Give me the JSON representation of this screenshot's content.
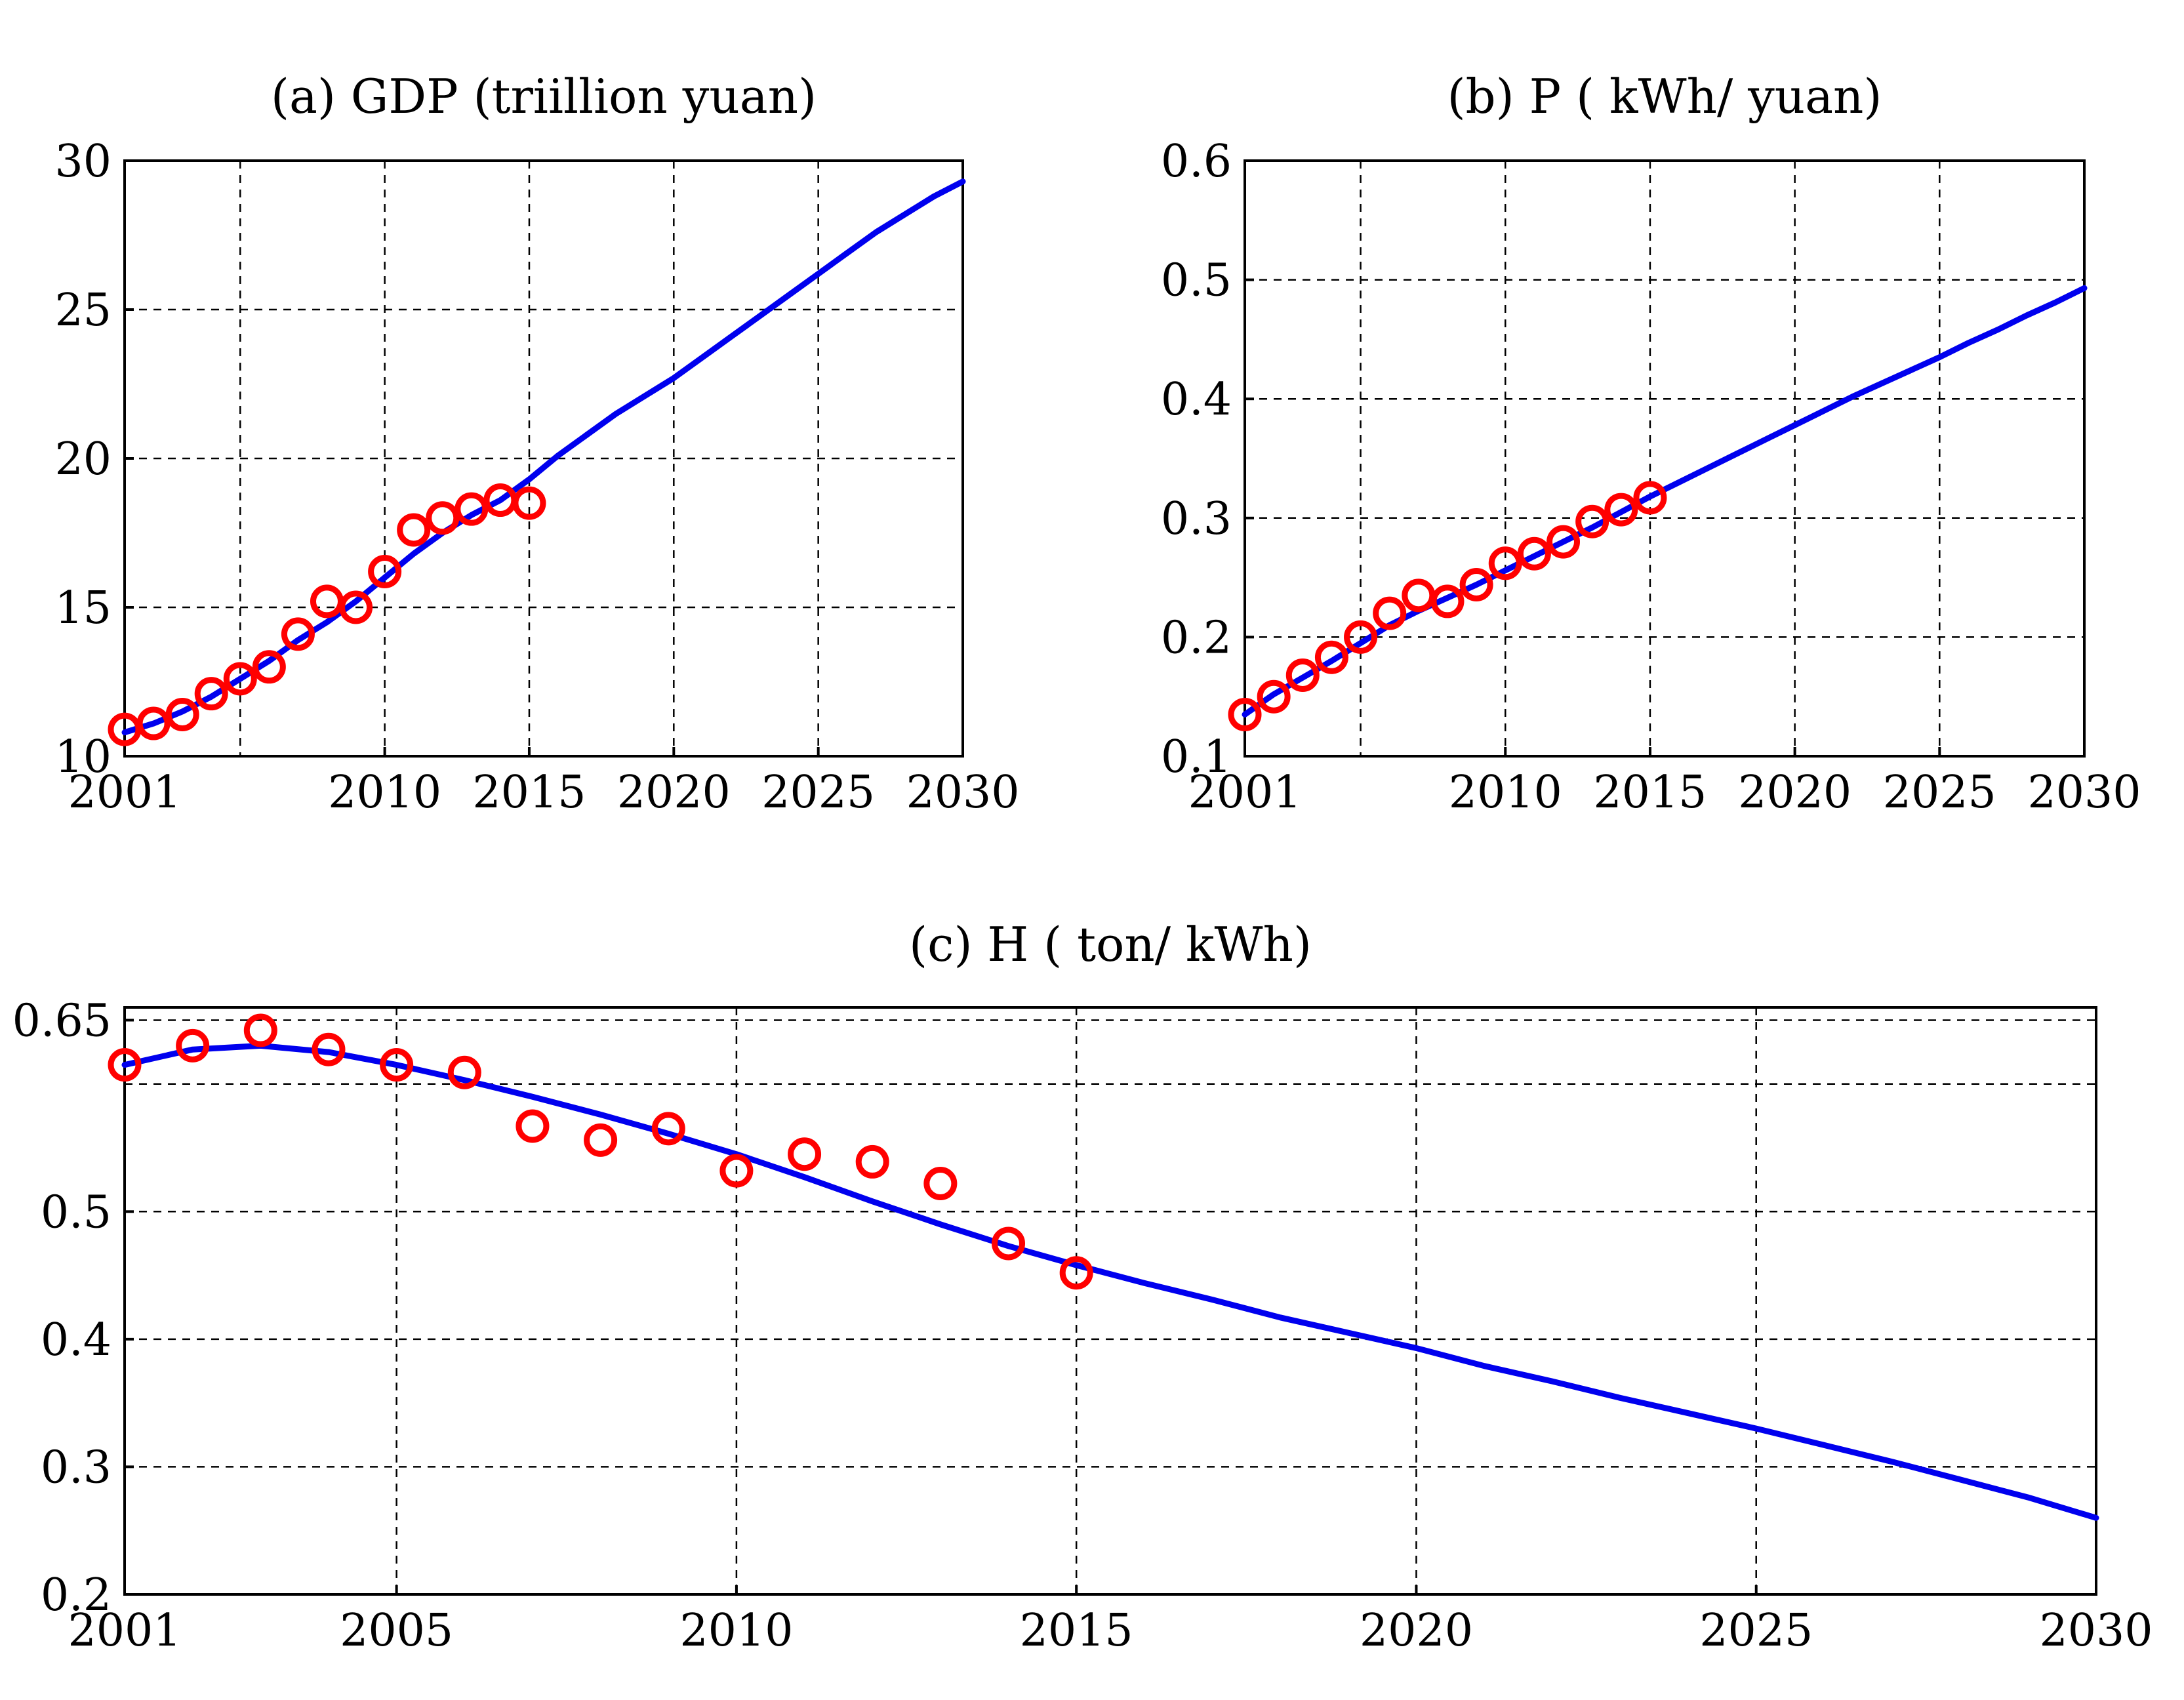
{
  "chart_data": [
    {
      "id": "a",
      "type": "line",
      "title": "(a) GDP (triillion yuan)",
      "xlim": [
        2001,
        2030
      ],
      "ylim": [
        10,
        30
      ],
      "xticks": [
        2001,
        2010,
        2015,
        2020,
        2025,
        2030
      ],
      "yticks": [
        10,
        15,
        20,
        25,
        30
      ],
      "xgrid": [
        2001,
        2005,
        2010,
        2015,
        2020,
        2025,
        2030
      ],
      "grid": true,
      "series": [
        {
          "kind": "line",
          "color": "#0000ee",
          "x": [
            2001,
            2002,
            2003,
            2004,
            2005,
            2006,
            2007,
            2008,
            2009,
            2010,
            2011,
            2012,
            2013,
            2014,
            2015,
            2016,
            2017,
            2018,
            2019,
            2020,
            2021,
            2022,
            2023,
            2024,
            2025,
            2026,
            2027,
            2028,
            2029,
            2030
          ],
          "y": [
            10.8,
            11.1,
            11.5,
            12.0,
            12.6,
            13.2,
            13.9,
            14.5,
            15.2,
            16.0,
            16.8,
            17.5,
            18.1,
            18.6,
            19.3,
            20.1,
            20.8,
            21.5,
            22.1,
            22.7,
            23.4,
            24.1,
            24.8,
            25.5,
            26.2,
            26.9,
            27.6,
            28.2,
            28.8,
            29.3
          ]
        },
        {
          "kind": "markers",
          "color": "#ff0000",
          "x": [
            2001,
            2002,
            2003,
            2004,
            2005,
            2006,
            2007,
            2008,
            2009,
            2010,
            2011,
            2012,
            2013,
            2014,
            2015
          ],
          "y": [
            10.9,
            11.1,
            11.4,
            12.1,
            12.6,
            13.0,
            14.1,
            15.2,
            15.0,
            16.2,
            17.6,
            18.0,
            18.3,
            18.6,
            18.5
          ]
        }
      ]
    },
    {
      "id": "b",
      "type": "line",
      "title": "(b) P ( kWh/ yuan)",
      "xlim": [
        2001,
        2030
      ],
      "ylim": [
        0.1,
        0.6
      ],
      "xticks": [
        2001,
        2010,
        2015,
        2020,
        2025,
        2030
      ],
      "yticks": [
        0.1,
        0.2,
        0.3,
        0.4,
        0.5,
        0.6
      ],
      "xgrid": [
        2001,
        2005,
        2010,
        2015,
        2020,
        2025,
        2030
      ],
      "grid": true,
      "series": [
        {
          "kind": "line",
          "color": "#0000ee",
          "x": [
            2001,
            2002,
            2003,
            2004,
            2005,
            2006,
            2007,
            2008,
            2009,
            2010,
            2011,
            2012,
            2013,
            2014,
            2015,
            2016,
            2017,
            2018,
            2019,
            2020,
            2021,
            2022,
            2023,
            2024,
            2025,
            2026,
            2027,
            2028,
            2029,
            2030
          ],
          "y": [
            0.135,
            0.152,
            0.166,
            0.18,
            0.195,
            0.21,
            0.222,
            0.233,
            0.244,
            0.256,
            0.268,
            0.28,
            0.292,
            0.305,
            0.318,
            0.33,
            0.342,
            0.354,
            0.366,
            0.378,
            0.39,
            0.402,
            0.413,
            0.424,
            0.435,
            0.447,
            0.458,
            0.47,
            0.481,
            0.493
          ]
        },
        {
          "kind": "markers",
          "color": "#ff0000",
          "x": [
            2001,
            2002,
            2003,
            2004,
            2005,
            2006,
            2007,
            2008,
            2009,
            2010,
            2011,
            2012,
            2013,
            2014,
            2015
          ],
          "y": [
            0.135,
            0.15,
            0.168,
            0.183,
            0.2,
            0.22,
            0.235,
            0.23,
            0.244,
            0.262,
            0.27,
            0.28,
            0.297,
            0.307,
            0.317
          ]
        }
      ]
    },
    {
      "id": "c",
      "type": "line",
      "title": "(c) H ( ton/ kWh)",
      "xlim": [
        2001,
        2030
      ],
      "ylim": [
        0.2,
        0.66
      ],
      "xticks": [
        2001,
        2005,
        2010,
        2015,
        2020,
        2025,
        2030
      ],
      "yticks": [
        0.2,
        0.3,
        0.4,
        0.5,
        0.65
      ],
      "ygrid": [
        0.3,
        0.4,
        0.5,
        0.6,
        0.65
      ],
      "xgrid": [
        2001,
        2005,
        2010,
        2015,
        2020,
        2025,
        2030
      ],
      "grid": true,
      "series": [
        {
          "kind": "line",
          "color": "#0000ee",
          "x": [
            2001,
            2002,
            2003,
            2004,
            2005,
            2006,
            2007,
            2008,
            2009,
            2010,
            2011,
            2012,
            2013,
            2014,
            2015,
            2016,
            2017,
            2018,
            2019,
            2020,
            2021,
            2022,
            2023,
            2024,
            2025,
            2026,
            2027,
            2028,
            2029,
            2030
          ],
          "y": [
            0.615,
            0.627,
            0.63,
            0.625,
            0.615,
            0.603,
            0.59,
            0.576,
            0.561,
            0.545,
            0.527,
            0.508,
            0.49,
            0.473,
            0.458,
            0.444,
            0.431,
            0.417,
            0.405,
            0.393,
            0.379,
            0.367,
            0.354,
            0.342,
            0.33,
            0.317,
            0.304,
            0.29,
            0.276,
            0.26
          ]
        },
        {
          "kind": "markers",
          "color": "#ff0000",
          "x": [
            2001,
            2002,
            2003,
            2004,
            2005,
            2006,
            2007,
            2008,
            2009,
            2010,
            2011,
            2012,
            2013,
            2014,
            2015
          ],
          "y": [
            0.615,
            0.63,
            0.642,
            0.627,
            0.615,
            0.609,
            0.567,
            0.556,
            0.565,
            0.532,
            0.545,
            0.539,
            0.522,
            0.475,
            0.452
          ]
        }
      ]
    }
  ]
}
